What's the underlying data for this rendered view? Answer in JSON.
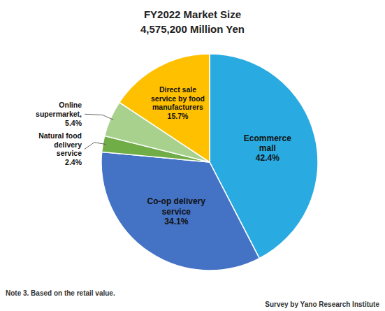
{
  "chart_data": {
    "type": "pie",
    "title": "FY2022 Market Size",
    "subtitle": "4,575,200 Million Yen",
    "categories": [
      "Ecommerce\nmall",
      "Co-op delivery\nservice",
      "Natural food\ndelivery\nservice",
      "Online\nsupermarket,",
      "Direct sale\nservice by food\nmanufacturers"
    ],
    "values": [
      42.4,
      34.1,
      2.4,
      5.4,
      15.7
    ],
    "value_labels": [
      "42.4%",
      "34.1%",
      "2.4%",
      "5.4%",
      "15.7%"
    ],
    "colors": [
      "#29ABE2",
      "#4472C4",
      "#70AD47",
      "#A9D18E",
      "#FFC000"
    ],
    "data_labels": true,
    "annotations": [
      "Note 3.  Based on the retail value.",
      "Survey by Yano Research Institute"
    ]
  }
}
